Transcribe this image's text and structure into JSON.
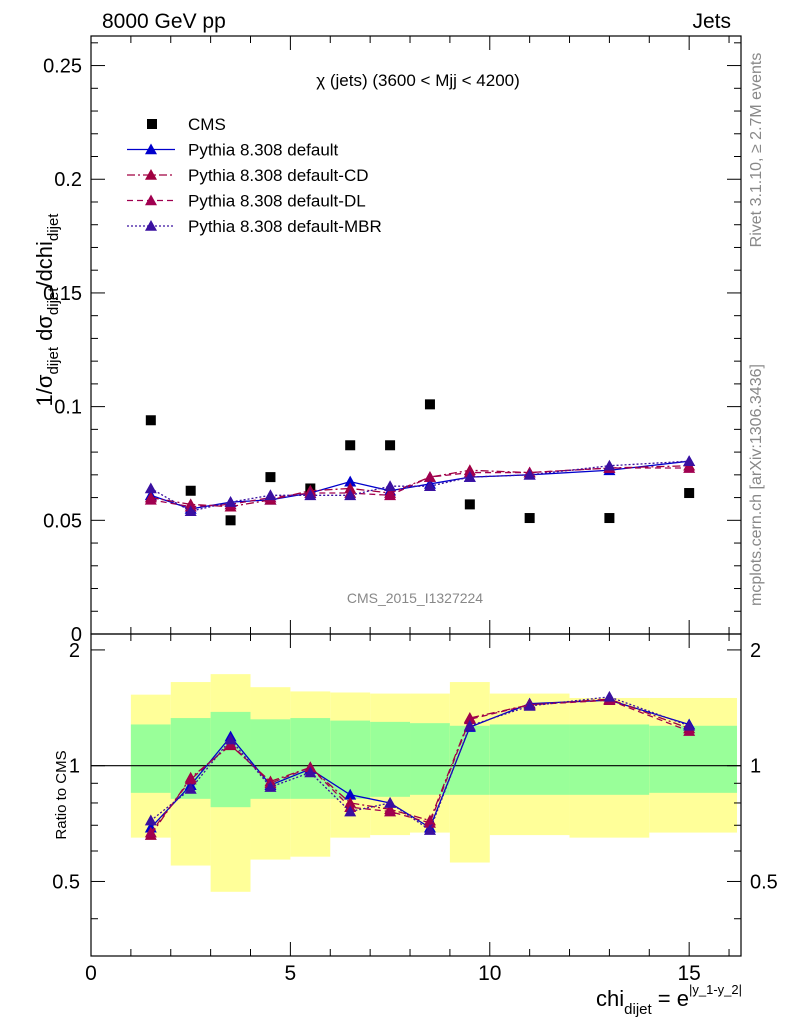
{
  "header": {
    "left": "8000 GeV pp",
    "right": "Jets"
  },
  "side_labels": {
    "rivet": "Rivet 3.1.10, ≥ 2.7M events",
    "mcplots": "mcplots.cern.ch [arXiv:1306.3436]"
  },
  "chart_data": [
    {
      "type": "scatter",
      "title": "χ (jets) (3600 < Mjj < 4200)",
      "watermark": "CMS_2015_I1327224",
      "ylabel": "1/σ_dijet dσ_dijet/dchi_dijet",
      "xlim": [
        0,
        16.3
      ],
      "ylim": [
        0,
        0.263
      ],
      "y_ticks": [
        "0",
        "0.05",
        "0.1",
        "0.15",
        "0.2",
        "0.25"
      ],
      "y_tick_values": [
        0,
        0.05,
        0.1,
        0.15,
        0.2,
        0.25
      ],
      "x": [
        1.5,
        2.5,
        3.5,
        4.5,
        5.5,
        6.5,
        7.5,
        8.5,
        9.5,
        11,
        13,
        15
      ],
      "legend": [
        {
          "label": "CMS",
          "series": "CMS"
        },
        {
          "label": "Pythia 8.308 default",
          "series": "default"
        },
        {
          "label": "Pythia 8.308 default-CD",
          "series": "CD"
        },
        {
          "label": "Pythia 8.308 default-DL",
          "series": "DL"
        },
        {
          "label": "Pythia 8.308 default-MBR",
          "series": "MBR"
        }
      ],
      "series": [
        {
          "name": "CMS",
          "color": "#000000",
          "style": "marker",
          "values": [
            0.094,
            0.063,
            0.05,
            0.069,
            0.064,
            0.083,
            0.083,
            0.101,
            0.057,
            0.051,
            0.051,
            0.062
          ]
        },
        {
          "name": "Pythia 8.308 default",
          "color": "#0000cc",
          "style": "solid",
          "values": [
            0.061,
            0.055,
            0.058,
            0.059,
            0.062,
            0.067,
            0.063,
            0.066,
            0.069,
            0.07,
            0.072,
            0.076
          ]
        },
        {
          "name": "Pythia 8.308 default-CD",
          "color": "#a00040",
          "style": "dashdot",
          "values": [
            0.06,
            0.057,
            0.056,
            0.059,
            0.063,
            0.064,
            0.062,
            0.069,
            0.072,
            0.071,
            0.073,
            0.074
          ]
        },
        {
          "name": "Pythia 8.308 default-DL",
          "color": "#a00050",
          "style": "dashed",
          "values": [
            0.059,
            0.056,
            0.057,
            0.06,
            0.062,
            0.062,
            0.061,
            0.069,
            0.071,
            0.071,
            0.073,
            0.073
          ]
        },
        {
          "name": "Pythia 8.308 default-MBR",
          "color": "#3a10a0",
          "style": "dotted",
          "values": [
            0.064,
            0.054,
            0.058,
            0.061,
            0.061,
            0.061,
            0.065,
            0.065,
            0.069,
            0.07,
            0.074,
            0.076
          ]
        }
      ]
    },
    {
      "type": "line",
      "ylabel": "Ratio to CMS",
      "xlabel": "chi_dijet = e^|y_1-y_2|",
      "xlim": [
        0,
        16.3
      ],
      "ylim": [
        0.32,
        2.2
      ],
      "x_ticks": [
        "0",
        "5",
        "10",
        "15"
      ],
      "x_tick_values": [
        0,
        5,
        10,
        15
      ],
      "y_ticks": [
        "0.5",
        "1",
        "2"
      ],
      "y_tick_values": [
        0.5,
        1,
        2
      ],
      "band_edges": [
        1,
        2,
        3,
        4,
        5,
        6,
        7,
        8,
        9,
        10,
        12,
        14,
        16.2
      ],
      "yellow_band": {
        "lo": [
          0.65,
          0.55,
          0.47,
          0.57,
          0.58,
          0.65,
          0.66,
          0.67,
          0.56,
          0.66,
          0.65,
          0.67
        ],
        "hi": [
          1.53,
          1.65,
          1.73,
          1.6,
          1.56,
          1.55,
          1.54,
          1.54,
          1.65,
          1.54,
          1.5,
          1.5
        ]
      },
      "green_band": {
        "lo": [
          0.85,
          0.82,
          0.78,
          0.82,
          0.82,
          0.82,
          0.83,
          0.84,
          0.84,
          0.84,
          0.84,
          0.85
        ]
      },
      "green_band_hi": [
        1.28,
        1.33,
        1.38,
        1.32,
        1.33,
        1.31,
        1.3,
        1.29,
        1.27,
        1.28,
        1.28,
        1.27
      ],
      "series": [
        {
          "name": "Pythia 8.308 default",
          "color": "#0000cc",
          "style": "solid",
          "values": [
            0.69,
            0.89,
            1.19,
            0.89,
            0.98,
            0.84,
            0.8,
            0.69,
            1.26,
            1.45,
            1.48,
            1.28
          ]
        },
        {
          "name": "Pythia 8.308 default-CD",
          "color": "#a00040",
          "style": "dashdot",
          "values": [
            0.66,
            0.93,
            1.13,
            0.91,
            0.99,
            0.8,
            0.77,
            0.72,
            1.33,
            1.44,
            1.49,
            1.25
          ]
        },
        {
          "name": "Pythia 8.308 default-DL",
          "color": "#a00050",
          "style": "dashed",
          "values": [
            0.67,
            0.92,
            1.14,
            0.9,
            0.99,
            0.78,
            0.76,
            0.71,
            1.32,
            1.44,
            1.48,
            1.23
          ]
        },
        {
          "name": "Pythia 8.308 default-MBR",
          "color": "#3a10a0",
          "style": "dotted",
          "values": [
            0.72,
            0.87,
            1.17,
            0.88,
            0.96,
            0.76,
            0.8,
            0.68,
            1.27,
            1.43,
            1.51,
            1.27
          ]
        }
      ]
    }
  ]
}
